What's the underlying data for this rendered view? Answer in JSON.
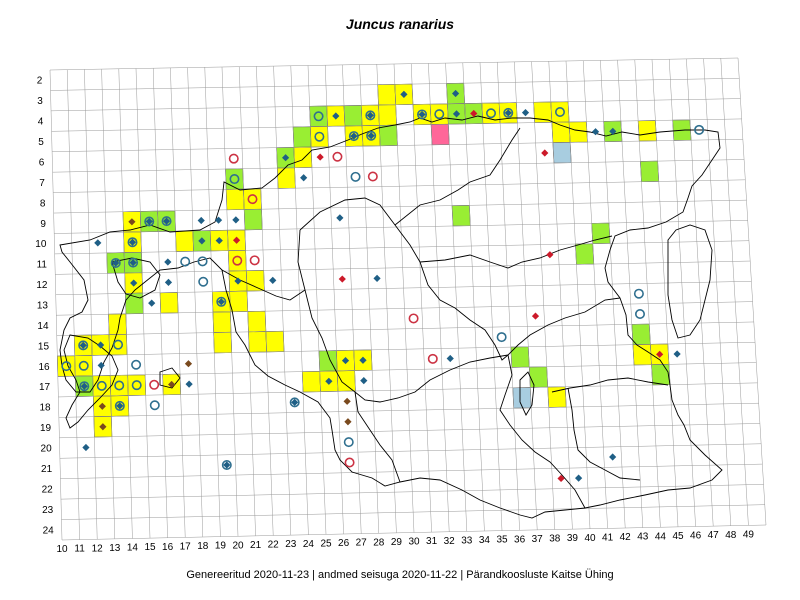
{
  "title": "Juncus ranarius",
  "footer": "Genereeritud 2020-11-23  |  andmed seisuga 2020-11-22  |  Pärandkoosluste Kaitse Ühing",
  "grid": {
    "row_labels": [
      "2",
      "3",
      "4",
      "5",
      "6",
      "7",
      "8",
      "9",
      "10",
      "11",
      "12",
      "13",
      "14",
      "15",
      "16",
      "17",
      "18",
      "19",
      "20",
      "21",
      "22",
      "23",
      "24"
    ],
    "col_labels": [
      "10",
      "11",
      "12",
      "13",
      "14",
      "15",
      "16",
      "17",
      "18",
      "19",
      "20",
      "21",
      "22",
      "23",
      "24",
      "25",
      "26",
      "27",
      "28",
      "29",
      "30",
      "31",
      "32",
      "33",
      "34",
      "35",
      "36",
      "37",
      "38",
      "39",
      "40",
      "41",
      "42",
      "43",
      "44",
      "45",
      "46",
      "47",
      "48",
      "49"
    ]
  },
  "colors": {
    "yellow": "#ffff00",
    "green": "#99ee33",
    "pink": "#ff6699",
    "blue": "#a8cde0",
    "marker_blue": "#1f5f86",
    "marker_red": "#cc1a2a",
    "marker_brown": "#7a4a1e",
    "circle_blue": "#2f6f8f",
    "circle_red": "#cc3344",
    "grid_line": "#999999",
    "border": "#000000"
  },
  "cells": [
    {
      "c": 29,
      "r": 3,
      "t": "yellow"
    },
    {
      "c": 30,
      "r": 3,
      "t": "yellow"
    },
    {
      "c": 33,
      "r": 3,
      "t": "green"
    },
    {
      "c": 25,
      "r": 4,
      "t": "green"
    },
    {
      "c": 26,
      "r": 4,
      "t": "yellow"
    },
    {
      "c": 27,
      "r": 4,
      "t": "green"
    },
    {
      "c": 28,
      "r": 4,
      "t": "yellow"
    },
    {
      "c": 29,
      "r": 4,
      "t": "yellow"
    },
    {
      "c": 31,
      "r": 4,
      "t": "yellow"
    },
    {
      "c": 32,
      "r": 4,
      "t": "yellow"
    },
    {
      "c": 33,
      "r": 4,
      "t": "green"
    },
    {
      "c": 34,
      "r": 4,
      "t": "green"
    },
    {
      "c": 35,
      "r": 4,
      "t": "yellow"
    },
    {
      "c": 36,
      "r": 4,
      "t": "yellow"
    },
    {
      "c": 38,
      "r": 4,
      "t": "yellow"
    },
    {
      "c": 39,
      "r": 4,
      "t": "yellow"
    },
    {
      "c": 24,
      "r": 5,
      "t": "green"
    },
    {
      "c": 25,
      "r": 5,
      "t": "yellow"
    },
    {
      "c": 27,
      "r": 5,
      "t": "yellow"
    },
    {
      "c": 28,
      "r": 5,
      "t": "yellow"
    },
    {
      "c": 29,
      "r": 5,
      "t": "green"
    },
    {
      "c": 32,
      "r": 5,
      "t": "pink"
    },
    {
      "c": 39,
      "r": 5,
      "t": "yellow"
    },
    {
      "c": 40,
      "r": 5,
      "t": "yellow"
    },
    {
      "c": 42,
      "r": 5,
      "t": "green"
    },
    {
      "c": 44,
      "r": 5,
      "t": "yellow"
    },
    {
      "c": 46,
      "r": 5,
      "t": "green"
    },
    {
      "c": 23,
      "r": 6,
      "t": "green"
    },
    {
      "c": 24,
      "r": 6,
      "t": "yellow"
    },
    {
      "c": 39,
      "r": 6,
      "t": "blue"
    },
    {
      "c": 20,
      "r": 7,
      "t": "green"
    },
    {
      "c": 23,
      "r": 7,
      "t": "yellow"
    },
    {
      "c": 44,
      "r": 7,
      "t": "green"
    },
    {
      "c": 20,
      "r": 8,
      "t": "yellow"
    },
    {
      "c": 21,
      "r": 8,
      "t": "yellow"
    },
    {
      "c": 14,
      "r": 9,
      "t": "yellow"
    },
    {
      "c": 15,
      "r": 9,
      "t": "green"
    },
    {
      "c": 16,
      "r": 9,
      "t": "green"
    },
    {
      "c": 21,
      "r": 9,
      "t": "green"
    },
    {
      "c": 33,
      "r": 9,
      "t": "green"
    },
    {
      "c": 14,
      "r": 10,
      "t": "yellow"
    },
    {
      "c": 17,
      "r": 10,
      "t": "yellow"
    },
    {
      "c": 18,
      "r": 10,
      "t": "green"
    },
    {
      "c": 19,
      "r": 10,
      "t": "yellow"
    },
    {
      "c": 20,
      "r": 10,
      "t": "yellow"
    },
    {
      "c": 41,
      "r": 10,
      "t": "green"
    },
    {
      "c": 13,
      "r": 11,
      "t": "green"
    },
    {
      "c": 14,
      "r": 11,
      "t": "green"
    },
    {
      "c": 20,
      "r": 11,
      "t": "yellow"
    },
    {
      "c": 40,
      "r": 11,
      "t": "green"
    },
    {
      "c": 14,
      "r": 12,
      "t": "yellow"
    },
    {
      "c": 20,
      "r": 12,
      "t": "yellow"
    },
    {
      "c": 21,
      "r": 12,
      "t": "yellow"
    },
    {
      "c": 14,
      "r": 13,
      "t": "green"
    },
    {
      "c": 16,
      "r": 13,
      "t": "yellow"
    },
    {
      "c": 19,
      "r": 13,
      "t": "yellow"
    },
    {
      "c": 20,
      "r": 13,
      "t": "yellow"
    },
    {
      "c": 13,
      "r": 14,
      "t": "yellow"
    },
    {
      "c": 19,
      "r": 14,
      "t": "yellow"
    },
    {
      "c": 21,
      "r": 14,
      "t": "yellow"
    },
    {
      "c": 11,
      "r": 15,
      "t": "yellow"
    },
    {
      "c": 12,
      "r": 15,
      "t": "yellow"
    },
    {
      "c": 13,
      "r": 15,
      "t": "yellow"
    },
    {
      "c": 19,
      "r": 15,
      "t": "yellow"
    },
    {
      "c": 21,
      "r": 15,
      "t": "yellow"
    },
    {
      "c": 22,
      "r": 15,
      "t": "yellow"
    },
    {
      "c": 43,
      "r": 15,
      "t": "green"
    },
    {
      "c": 10,
      "r": 16,
      "t": "yellow"
    },
    {
      "c": 11,
      "r": 16,
      "t": "yellow"
    },
    {
      "c": 25,
      "r": 16,
      "t": "green"
    },
    {
      "c": 26,
      "r": 16,
      "t": "yellow"
    },
    {
      "c": 27,
      "r": 16,
      "t": "yellow"
    },
    {
      "c": 36,
      "r": 16,
      "t": "green"
    },
    {
      "c": 43,
      "r": 16,
      "t": "yellow"
    },
    {
      "c": 44,
      "r": 16,
      "t": "yellow"
    },
    {
      "c": 11,
      "r": 17,
      "t": "green"
    },
    {
      "c": 12,
      "r": 17,
      "t": "yellow"
    },
    {
      "c": 13,
      "r": 17,
      "t": "yellow"
    },
    {
      "c": 14,
      "r": 17,
      "t": "yellow"
    },
    {
      "c": 16,
      "r": 17,
      "t": "yellow"
    },
    {
      "c": 24,
      "r": 17,
      "t": "yellow"
    },
    {
      "c": 25,
      "r": 17,
      "t": "yellow"
    },
    {
      "c": 26,
      "r": 17,
      "t": "yellow"
    },
    {
      "c": 37,
      "r": 17,
      "t": "green"
    },
    {
      "c": 44,
      "r": 17,
      "t": "green"
    },
    {
      "c": 12,
      "r": 18,
      "t": "yellow"
    },
    {
      "c": 13,
      "r": 18,
      "t": "yellow"
    },
    {
      "c": 36,
      "r": 18,
      "t": "blue"
    },
    {
      "c": 38,
      "r": 18,
      "t": "yellow"
    },
    {
      "c": 12,
      "r": 19,
      "t": "yellow"
    }
  ],
  "markers": [
    {
      "c": 30,
      "r": 3,
      "k": "diamond",
      "col": "blue"
    },
    {
      "c": 33,
      "r": 3,
      "k": "diamond",
      "col": "blue"
    },
    {
      "c": 25,
      "r": 4,
      "k": "circle",
      "col": "blue"
    },
    {
      "c": 26,
      "r": 4,
      "k": "diamond",
      "col": "blue"
    },
    {
      "c": 28,
      "r": 4,
      "k": "circdia",
      "col": "blue"
    },
    {
      "c": 31,
      "r": 4,
      "k": "circdia",
      "col": "blue"
    },
    {
      "c": 32,
      "r": 4,
      "k": "circle",
      "col": "blue"
    },
    {
      "c": 33,
      "r": 4,
      "k": "diamond",
      "col": "blue"
    },
    {
      "c": 34,
      "r": 4,
      "k": "diamond",
      "col": "red"
    },
    {
      "c": 35,
      "r": 4,
      "k": "circle",
      "col": "blue"
    },
    {
      "c": 36,
      "r": 4,
      "k": "circdia",
      "col": "blue"
    },
    {
      "c": 37,
      "r": 4,
      "k": "diamond",
      "col": "blue"
    },
    {
      "c": 39,
      "r": 4,
      "k": "circle",
      "col": "blue"
    },
    {
      "c": 25,
      "r": 5,
      "k": "circle",
      "col": "blue"
    },
    {
      "c": 27,
      "r": 5,
      "k": "circdia",
      "col": "blue"
    },
    {
      "c": 28,
      "r": 5,
      "k": "circdia",
      "col": "blue"
    },
    {
      "c": 41,
      "r": 5,
      "k": "diamond",
      "col": "blue"
    },
    {
      "c": 42,
      "r": 5,
      "k": "diamond",
      "col": "blue"
    },
    {
      "c": 47,
      "r": 5,
      "k": "circle",
      "col": "blue"
    },
    {
      "c": 23,
      "r": 6,
      "k": "diamond",
      "col": "blue"
    },
    {
      "c": 25,
      "r": 6,
      "k": "diamond",
      "col": "red"
    },
    {
      "c": 26,
      "r": 6,
      "k": "circle",
      "col": "red"
    },
    {
      "c": 38,
      "r": 6,
      "k": "diamond",
      "col": "red"
    },
    {
      "c": 20,
      "r": 6,
      "k": "circle",
      "col": "red"
    },
    {
      "c": 20,
      "r": 7,
      "k": "circle",
      "col": "blue"
    },
    {
      "c": 24,
      "r": 7,
      "k": "diamond",
      "col": "blue"
    },
    {
      "c": 27,
      "r": 7,
      "k": "circle",
      "col": "blue"
    },
    {
      "c": 28,
      "r": 7,
      "k": "circle",
      "col": "red"
    },
    {
      "c": 21,
      "r": 8,
      "k": "circle",
      "col": "red"
    },
    {
      "c": 14,
      "r": 9,
      "k": "diamond",
      "col": "brown"
    },
    {
      "c": 15,
      "r": 9,
      "k": "circdia",
      "col": "blue"
    },
    {
      "c": 16,
      "r": 9,
      "k": "circdia",
      "col": "blue"
    },
    {
      "c": 18,
      "r": 9,
      "k": "diamond",
      "col": "blue"
    },
    {
      "c": 19,
      "r": 9,
      "k": "diamond",
      "col": "blue"
    },
    {
      "c": 20,
      "r": 9,
      "k": "diamond",
      "col": "blue"
    },
    {
      "c": 26,
      "r": 9,
      "k": "diamond",
      "col": "blue"
    },
    {
      "c": 12,
      "r": 10,
      "k": "diamond",
      "col": "blue"
    },
    {
      "c": 14,
      "r": 10,
      "k": "circdia",
      "col": "blue"
    },
    {
      "c": 18,
      "r": 10,
      "k": "diamond",
      "col": "blue"
    },
    {
      "c": 19,
      "r": 10,
      "k": "diamond",
      "col": "blue"
    },
    {
      "c": 20,
      "r": 10,
      "k": "diamond",
      "col": "red"
    },
    {
      "c": 13,
      "r": 11,
      "k": "circdia",
      "col": "blue"
    },
    {
      "c": 14,
      "r": 11,
      "k": "circdia",
      "col": "blue"
    },
    {
      "c": 16,
      "r": 11,
      "k": "diamond",
      "col": "blue"
    },
    {
      "c": 17,
      "r": 11,
      "k": "circle",
      "col": "blue"
    },
    {
      "c": 18,
      "r": 11,
      "k": "circle",
      "col": "blue"
    },
    {
      "c": 20,
      "r": 11,
      "k": "circle",
      "col": "red"
    },
    {
      "c": 21,
      "r": 11,
      "k": "circle",
      "col": "red"
    },
    {
      "c": 38,
      "r": 11,
      "k": "diamond",
      "col": "red"
    },
    {
      "c": 14,
      "r": 12,
      "k": "diamond",
      "col": "blue"
    },
    {
      "c": 16,
      "r": 12,
      "k": "diamond",
      "col": "blue"
    },
    {
      "c": 18,
      "r": 12,
      "k": "circle",
      "col": "blue"
    },
    {
      "c": 20,
      "r": 12,
      "k": "diamond",
      "col": "blue"
    },
    {
      "c": 22,
      "r": 12,
      "k": "diamond",
      "col": "blue"
    },
    {
      "c": 26,
      "r": 12,
      "k": "diamond",
      "col": "red"
    },
    {
      "c": 28,
      "r": 12,
      "k": "diamond",
      "col": "blue"
    },
    {
      "c": 15,
      "r": 13,
      "k": "diamond",
      "col": "blue"
    },
    {
      "c": 19,
      "r": 13,
      "k": "circdia",
      "col": "blue"
    },
    {
      "c": 43,
      "r": 13,
      "k": "circle",
      "col": "blue"
    },
    {
      "c": 30,
      "r": 14,
      "k": "circle",
      "col": "red"
    },
    {
      "c": 37,
      "r": 14,
      "k": "diamond",
      "col": "red"
    },
    {
      "c": 43,
      "r": 14,
      "k": "circle",
      "col": "blue"
    },
    {
      "c": 11,
      "r": 15,
      "k": "circdia",
      "col": "blue"
    },
    {
      "c": 12,
      "r": 15,
      "k": "diamond",
      "col": "blue"
    },
    {
      "c": 13,
      "r": 15,
      "k": "circle",
      "col": "blue"
    },
    {
      "c": 35,
      "r": 15,
      "k": "circle",
      "col": "blue"
    },
    {
      "c": 10,
      "r": 16,
      "k": "circle",
      "col": "blue"
    },
    {
      "c": 11,
      "r": 16,
      "k": "circle",
      "col": "blue"
    },
    {
      "c": 12,
      "r": 16,
      "k": "diamond",
      "col": "blue"
    },
    {
      "c": 14,
      "r": 16,
      "k": "circle",
      "col": "blue"
    },
    {
      "c": 17,
      "r": 16,
      "k": "diamond",
      "col": "brown"
    },
    {
      "c": 26,
      "r": 16,
      "k": "diamond",
      "col": "blue"
    },
    {
      "c": 27,
      "r": 16,
      "k": "diamond",
      "col": "blue"
    },
    {
      "c": 31,
      "r": 16,
      "k": "circle",
      "col": "red"
    },
    {
      "c": 32,
      "r": 16,
      "k": "diamond",
      "col": "blue"
    },
    {
      "c": 44,
      "r": 16,
      "k": "diamond",
      "col": "red"
    },
    {
      "c": 45,
      "r": 16,
      "k": "diamond",
      "col": "blue"
    },
    {
      "c": 11,
      "r": 17,
      "k": "circdia",
      "col": "blue"
    },
    {
      "c": 12,
      "r": 17,
      "k": "circle",
      "col": "blue"
    },
    {
      "c": 13,
      "r": 17,
      "k": "circle",
      "col": "blue"
    },
    {
      "c": 14,
      "r": 17,
      "k": "circle",
      "col": "blue"
    },
    {
      "c": 15,
      "r": 17,
      "k": "circle",
      "col": "red"
    },
    {
      "c": 16,
      "r": 17,
      "k": "diamond",
      "col": "brown"
    },
    {
      "c": 17,
      "r": 17,
      "k": "diamond",
      "col": "blue"
    },
    {
      "c": 25,
      "r": 17,
      "k": "diamond",
      "col": "blue"
    },
    {
      "c": 27,
      "r": 17,
      "k": "diamond",
      "col": "blue"
    },
    {
      "c": 12,
      "r": 18,
      "k": "diamond",
      "col": "brown"
    },
    {
      "c": 13,
      "r": 18,
      "k": "circdia",
      "col": "blue"
    },
    {
      "c": 15,
      "r": 18,
      "k": "circle",
      "col": "blue"
    },
    {
      "c": 23,
      "r": 18,
      "k": "circdia",
      "col": "blue"
    },
    {
      "c": 26,
      "r": 18,
      "k": "diamond",
      "col": "brown"
    },
    {
      "c": 12,
      "r": 19,
      "k": "diamond",
      "col": "brown"
    },
    {
      "c": 26,
      "r": 19,
      "k": "diamond",
      "col": "brown"
    },
    {
      "c": 11,
      "r": 20,
      "k": "diamond",
      "col": "blue"
    },
    {
      "c": 26,
      "r": 20,
      "k": "circle",
      "col": "blue"
    },
    {
      "c": 19,
      "r": 21,
      "k": "circdia",
      "col": "blue"
    },
    {
      "c": 26,
      "r": 21,
      "k": "circle",
      "col": "red"
    },
    {
      "c": 41,
      "r": 21,
      "k": "diamond",
      "col": "blue"
    },
    {
      "c": 38,
      "r": 22,
      "k": "diamond",
      "col": "red"
    },
    {
      "c": 39,
      "r": 22,
      "k": "diamond",
      "col": "blue"
    }
  ]
}
